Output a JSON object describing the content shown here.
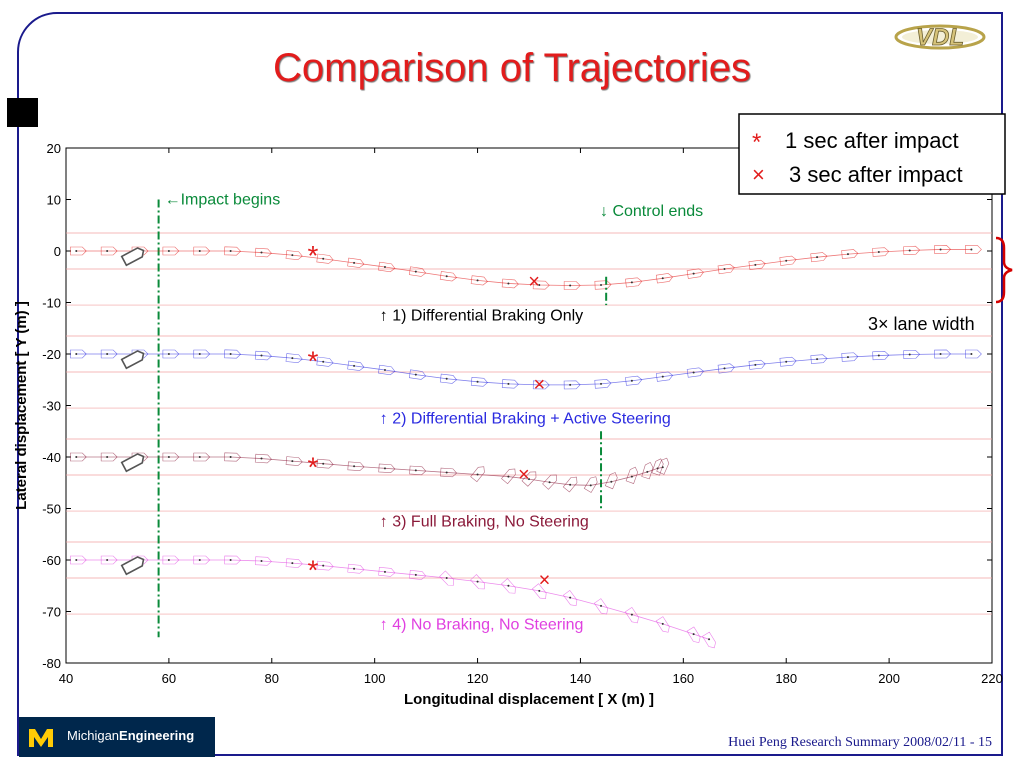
{
  "slide": {
    "title": "Comparison of Trajectories",
    "logo_text": "VDL",
    "footer": "Huei Peng Research Summary 2008/02/11 - 15",
    "brand": {
      "light": "Michigan",
      "bold": "Engineering"
    },
    "colors": {
      "title": "#e21c1c",
      "frame": "#1a1a8c",
      "brand_bg": "#00274c",
      "brand_gold": "#ffcb05"
    }
  },
  "chart_data": {
    "type": "scatter",
    "xlabel": "Longitudinal displacement  [ X (m) ]",
    "ylabel": "Lateral displacement  [ Y (m) ]",
    "xlim": [
      40,
      220
    ],
    "ylim": [
      -80,
      20
    ],
    "xticks": [
      "40",
      "60",
      "80",
      "100",
      "120",
      "140",
      "160",
      "180",
      "200",
      "220"
    ],
    "yticks": [
      "20",
      "10",
      "0",
      "-10",
      "-20",
      "-30",
      "-40",
      "-50",
      "-60",
      "-70",
      "-80"
    ],
    "legend": {
      "position": "top-right",
      "entries": [
        {
          "marker": "*",
          "label": "1 sec after impact",
          "color": "#e21c1c"
        },
        {
          "marker": "×",
          "label": "3 sec after impact",
          "color": "#e21c1c"
        }
      ]
    },
    "annotations": {
      "impact": {
        "text": "←Impact begins",
        "x": 58,
        "color": "#0a8a3a"
      },
      "control_end": {
        "text": "↓ Control ends",
        "color": "#0a8a3a"
      },
      "lane_width": {
        "text": "3× lane width",
        "color": "#d40000"
      }
    },
    "series": [
      {
        "name": "↑ 1) Differential Braking Only",
        "color": "#e21c1c",
        "label_color": "#000000",
        "offset": 0,
        "label_x": 101,
        "label_y": -13.5,
        "control_end_x": 145,
        "x": [
          42,
          48,
          54,
          60,
          66,
          72,
          78,
          84,
          90,
          96,
          102,
          108,
          114,
          120,
          126,
          132,
          138,
          144,
          150,
          156,
          162,
          168,
          174,
          180,
          186,
          192,
          198,
          204,
          210,
          216
        ],
        "y": [
          0,
          0,
          0,
          0,
          0,
          0,
          -0.3,
          -0.8,
          -1.5,
          -2.3,
          -3.1,
          -4.0,
          -4.9,
          -5.7,
          -6.3,
          -6.6,
          -6.7,
          -6.6,
          -6.1,
          -5.3,
          -4.4,
          -3.5,
          -2.7,
          -1.9,
          -1.2,
          -0.6,
          -0.2,
          0.1,
          0.3,
          0.3
        ],
        "impact_marker": [
          88,
          -1
        ],
        "marker_3s": [
          131,
          -6
        ]
      },
      {
        "name": "↑ 2) Differential Braking + Active Steering",
        "color": "#2a2ae0",
        "label_color": "#2a2ae0",
        "offset": -20,
        "label_x": 101,
        "label_y": -33.5,
        "control_end_x": 144,
        "x": [
          42,
          48,
          54,
          60,
          66,
          72,
          78,
          84,
          90,
          96,
          102,
          108,
          114,
          120,
          126,
          132,
          138,
          144,
          150,
          156,
          162,
          168,
          174,
          180,
          186,
          192,
          198,
          204,
          210,
          216
        ],
        "y": [
          -20,
          -20,
          -20,
          -20,
          -20,
          -20,
          -20.3,
          -20.8,
          -21.5,
          -22.3,
          -23.1,
          -24.0,
          -24.8,
          -25.4,
          -25.8,
          -26.0,
          -26.0,
          -25.8,
          -25.2,
          -24.4,
          -23.6,
          -22.8,
          -22.1,
          -21.5,
          -21.0,
          -20.6,
          -20.3,
          -20.1,
          -20.0,
          -20.0
        ],
        "impact_marker": [
          88,
          -21.5
        ],
        "marker_3s": [
          132,
          -26
        ]
      },
      {
        "name": "↑ 3) Full Braking, No Steering",
        "color": "#8b1a3a",
        "label_color": "#8b1a3a",
        "offset": -40,
        "label_x": 101,
        "label_y": -53.5,
        "x": [
          42,
          48,
          54,
          60,
          66,
          72,
          78,
          84,
          90,
          96,
          102,
          108,
          114,
          120,
          126,
          130,
          134,
          138,
          142,
          146,
          150,
          153,
          155,
          156
        ],
        "y": [
          -40,
          -40,
          -40,
          -40,
          -40,
          -40,
          -40.3,
          -40.8,
          -41.3,
          -41.8,
          -42.2,
          -42.6,
          -43.0,
          -43.4,
          -43.8,
          -44.3,
          -44.9,
          -45.4,
          -45.5,
          -44.8,
          -43.8,
          -42.9,
          -42.2,
          -42.0
        ],
        "impact_marker": [
          88,
          -42
        ],
        "marker_3s": [
          129,
          -43.5
        ]
      },
      {
        "name": "↑ 4) No Braking, No Steering",
        "color": "#e040e0",
        "label_color": "#e040e0",
        "offset": -60,
        "label_x": 101,
        "label_y": -73.5,
        "x": [
          42,
          48,
          54,
          60,
          66,
          72,
          78,
          84,
          90,
          96,
          102,
          108,
          114,
          120,
          126,
          132,
          138,
          144,
          150,
          156,
          162,
          165
        ],
        "y": [
          -60,
          -60,
          -60,
          -60,
          -60,
          -60,
          -60.2,
          -60.6,
          -61.1,
          -61.7,
          -62.3,
          -62.9,
          -63.5,
          -64.2,
          -65.0,
          -66.0,
          -67.3,
          -68.9,
          -70.6,
          -72.4,
          -74.4,
          -75.4
        ],
        "impact_marker": [
          88,
          -62
        ],
        "marker_3s": [
          133,
          -64
        ]
      }
    ]
  }
}
